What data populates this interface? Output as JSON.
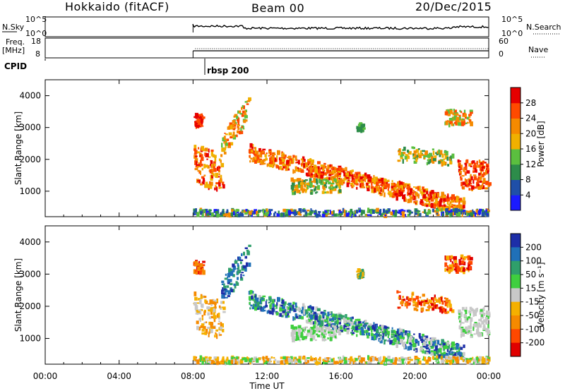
{
  "header": {
    "radar": "Hokkaido (fitACF)",
    "beam": "Beam 00",
    "date": "20/Dec/2015"
  },
  "panels": {
    "nsky_label": "N.Sky",
    "nsearch_label": "N.Search",
    "freq_label": "Freq.",
    "freq_unit": "[MHz]",
    "nave_label": "Nave",
    "cpid_label": "CPID",
    "cpid_value": "rbsp 200",
    "left_ticks": [
      "10^5",
      "10^0"
    ],
    "right_ticks": [
      "10^5",
      "10^0"
    ],
    "freq_ticks": [
      "18",
      "8"
    ],
    "nave_ticks": [
      "60",
      "0"
    ]
  },
  "colors": {
    "power": [
      "#1b1bff",
      "#1f4fa8",
      "#2d8c4a",
      "#5bbf3f",
      "#f0b000",
      "#f58a00",
      "#ff4a00",
      "#e60000"
    ],
    "velocity": [
      "#1d2ea8",
      "#2070b8",
      "#2f9f6b",
      "#3fcf3f",
      "#c8c8c8",
      "#f5b000",
      "#f58a00",
      "#ff4800",
      "#e00000"
    ]
  },
  "chart_data": [
    {
      "type": "heatmap",
      "title": "Power",
      "xlabel": "Time UT",
      "ylabel": "Slant Range [km]",
      "x_ticks": [
        "00:00",
        "04:00",
        "08:00",
        "12:00",
        "16:00",
        "20:00",
        "00:00"
      ],
      "xlim": [
        0,
        24
      ],
      "ylim": [
        200,
        4500
      ],
      "y_ticks": [
        1000,
        2000,
        3000,
        4000
      ],
      "colorbar_label": "Power [dB]",
      "colorbar_ticks": [
        4,
        8,
        12,
        16,
        20,
        24,
        28
      ],
      "data_start_hour": 8.0
    },
    {
      "type": "heatmap",
      "title": "Velocity",
      "xlabel": "Time UT",
      "ylabel": "Slant Range [km]",
      "x_ticks": [
        "00:00",
        "04:00",
        "08:00",
        "12:00",
        "16:00",
        "20:00",
        "00:00"
      ],
      "xlim": [
        0,
        24
      ],
      "ylim": [
        200,
        4500
      ],
      "y_ticks": [
        1000,
        2000,
        3000,
        4000
      ],
      "colorbar_label": "Velocity [m s⁻¹]",
      "colorbar_ticks": [
        200,
        100,
        50,
        15,
        -15,
        -50,
        -100,
        -200
      ],
      "data_start_hour": 8.0
    }
  ]
}
